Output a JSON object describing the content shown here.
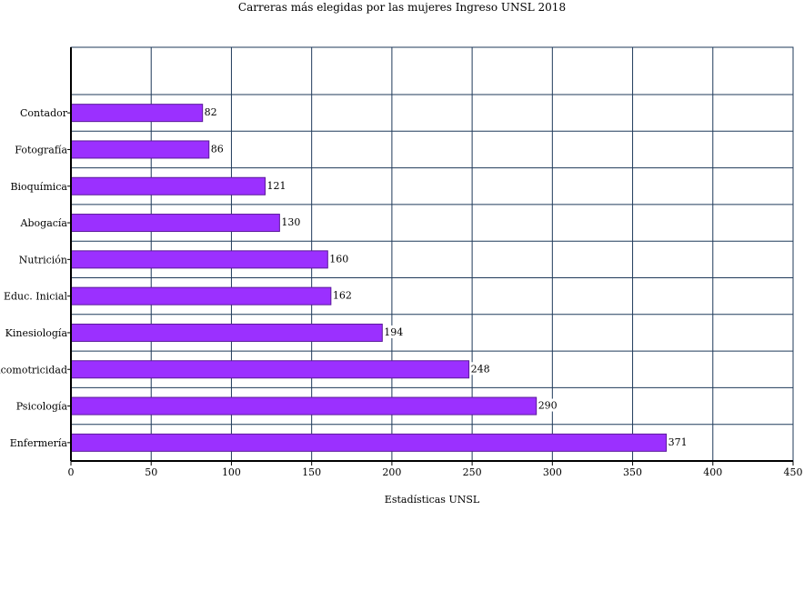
{
  "chart_data": {
    "type": "bar",
    "orientation": "horizontal",
    "title": "Carreras más elegidas por las mujeres Ingreso UNSL 2018",
    "xlabel": "Estadísticas UNSL",
    "ylabel": "",
    "xlim": [
      0,
      450
    ],
    "xticks": [
      "0",
      "50",
      "100",
      "150",
      "200",
      "250",
      "300",
      "350",
      "400",
      "450"
    ],
    "grid": true,
    "categories": [
      "Contador",
      "Fotografía",
      "Bioquímica",
      "Abogacía",
      "Nutrición",
      "Educ. Inicial",
      "Kinesiología",
      "Psicomotricidad",
      "Psicología",
      "Enfermería"
    ],
    "values": [
      82,
      86,
      121,
      130,
      160,
      162,
      194,
      248,
      290,
      371
    ],
    "colors": {
      "bar": "#9b30ff",
      "bar_edge": "#5a1a99",
      "grid": "#1f3a5a",
      "axis": "#000000"
    }
  }
}
